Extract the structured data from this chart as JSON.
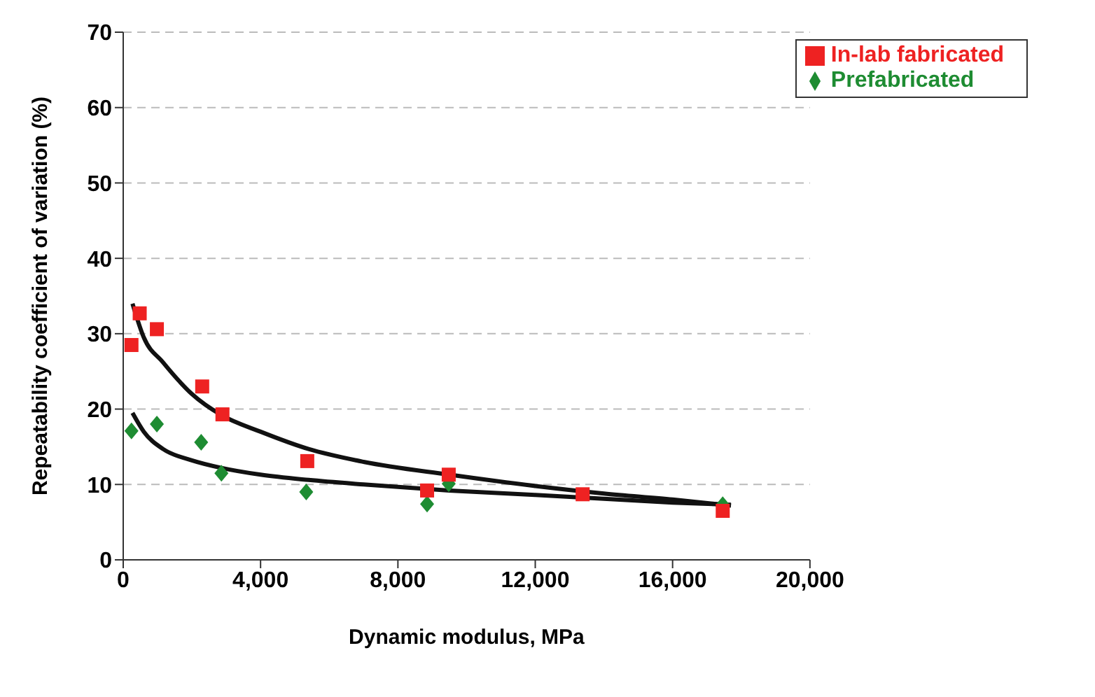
{
  "chart_data": {
    "type": "scatter",
    "xlabel": "Dynamic modulus, MPa",
    "ylabel": "Repeatability coefficient of variation (%)",
    "xlim": [
      0,
      20000
    ],
    "xticks": [
      0,
      {
        "value": 4000,
        "label": "4,000"
      },
      {
        "value": 8000,
        "label": "8,000"
      },
      {
        "value": 12000,
        "label": "12,000"
      },
      {
        "value": 16000,
        "label": "16,000"
      },
      {
        "value": 20000,
        "label": "20,000"
      }
    ],
    "ylim": [
      0,
      70
    ],
    "yticks": [
      0,
      10,
      20,
      30,
      40,
      50,
      60,
      70
    ],
    "grid": "y",
    "legend": "top right",
    "series": [
      {
        "name": "Prefabricated",
        "color": "#1e8c32",
        "marker": "diamond",
        "x": [
          240,
          980,
          2270,
          2860,
          5330,
          8850,
          9480,
          17460
        ],
        "values": [
          17.1,
          18.0,
          15.6,
          11.5,
          9.0,
          7.4,
          10.1,
          7.3
        ]
      },
      {
        "name": "In-lab fabricated",
        "color": "#ee2222",
        "marker": "square",
        "x": [
          240,
          480,
          980,
          2300,
          2890,
          5360,
          8850,
          9480,
          13380,
          17460
        ],
        "values": [
          28.5,
          32.7,
          30.6,
          23.0,
          19.3,
          13.1,
          9.2,
          11.3,
          8.7,
          6.5
        ]
      },
      {
        "type": "line",
        "color": "#111111",
        "marker": "none",
        "x": [
          270,
          600,
          1160,
          2000,
          2860,
          4000,
          5400,
          7000,
          9500,
          12000,
          14000,
          16000,
          17700
        ],
        "values": [
          34,
          29.5,
          26.2,
          22,
          19.2,
          17,
          14.7,
          13,
          11.3,
          9.8,
          8.8,
          8,
          7.2
        ]
      },
      {
        "type": "line",
        "color": "#111111",
        "marker": "none",
        "x": [
          270,
          600,
          1160,
          2000,
          2860,
          4000,
          5400,
          7000,
          9500,
          12000,
          14000,
          16000,
          17700
        ],
        "values": [
          19.5,
          17,
          14.7,
          13.2,
          12.2,
          11.3,
          10.6,
          10,
          9.2,
          8.6,
          8.1,
          7.6,
          7.3
        ]
      }
    ]
  }
}
